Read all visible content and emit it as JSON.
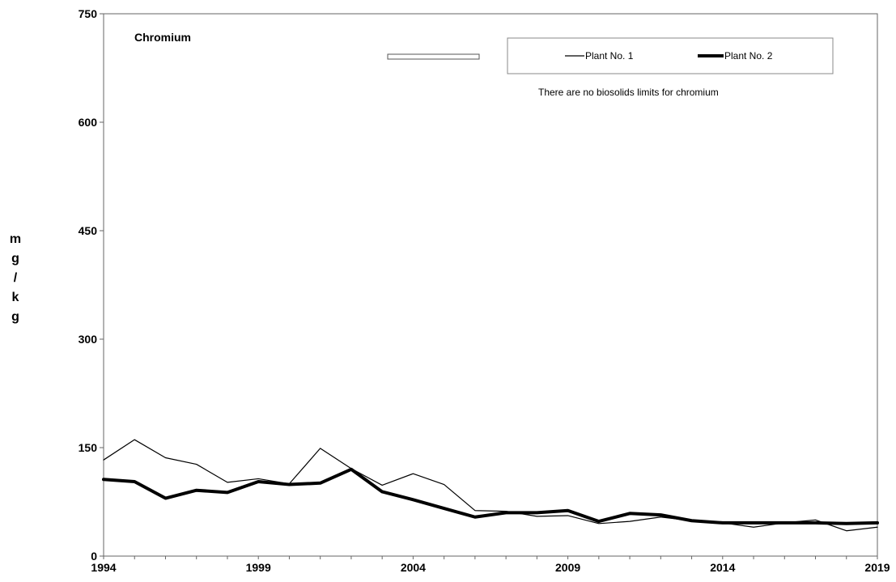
{
  "chart_data": {
    "type": "line",
    "title": "Chromium",
    "ylabel": "mg/kg",
    "xlabel": "",
    "xlim": [
      1994,
      2019
    ],
    "ylim": [
      0,
      750
    ],
    "xticks": [
      1994,
      1999,
      2004,
      2009,
      2014,
      2019
    ],
    "yticks": [
      0,
      150,
      300,
      450,
      600,
      750
    ],
    "legend_position": "top-right",
    "annotations": [
      "There are no biosolids limits for chromium"
    ],
    "x": [
      1994,
      1995,
      1996,
      1997,
      1998,
      1999,
      2000,
      2001,
      2002,
      2003,
      2004,
      2005,
      2006,
      2007,
      2008,
      2009,
      2010,
      2011,
      2012,
      2013,
      2014,
      2015,
      2016,
      2017,
      2018,
      2019
    ],
    "series": [
      {
        "name": "Plant No. 1",
        "color": "#000000",
        "values": [
          133,
          161,
          136,
          127,
          102,
          107,
          100,
          149,
          121,
          98,
          114,
          99,
          63,
          62,
          55,
          56,
          45,
          48,
          54,
          49,
          46,
          40,
          46,
          50,
          35,
          40
        ]
      },
      {
        "name": "Plant No. 2",
        "color": "#000000",
        "values": [
          106,
          103,
          80,
          91,
          88,
          103,
          99,
          101,
          120,
          89,
          78,
          66,
          54,
          60,
          60,
          63,
          48,
          59,
          57,
          49,
          46,
          46,
          46,
          46,
          45,
          46
        ]
      }
    ]
  }
}
